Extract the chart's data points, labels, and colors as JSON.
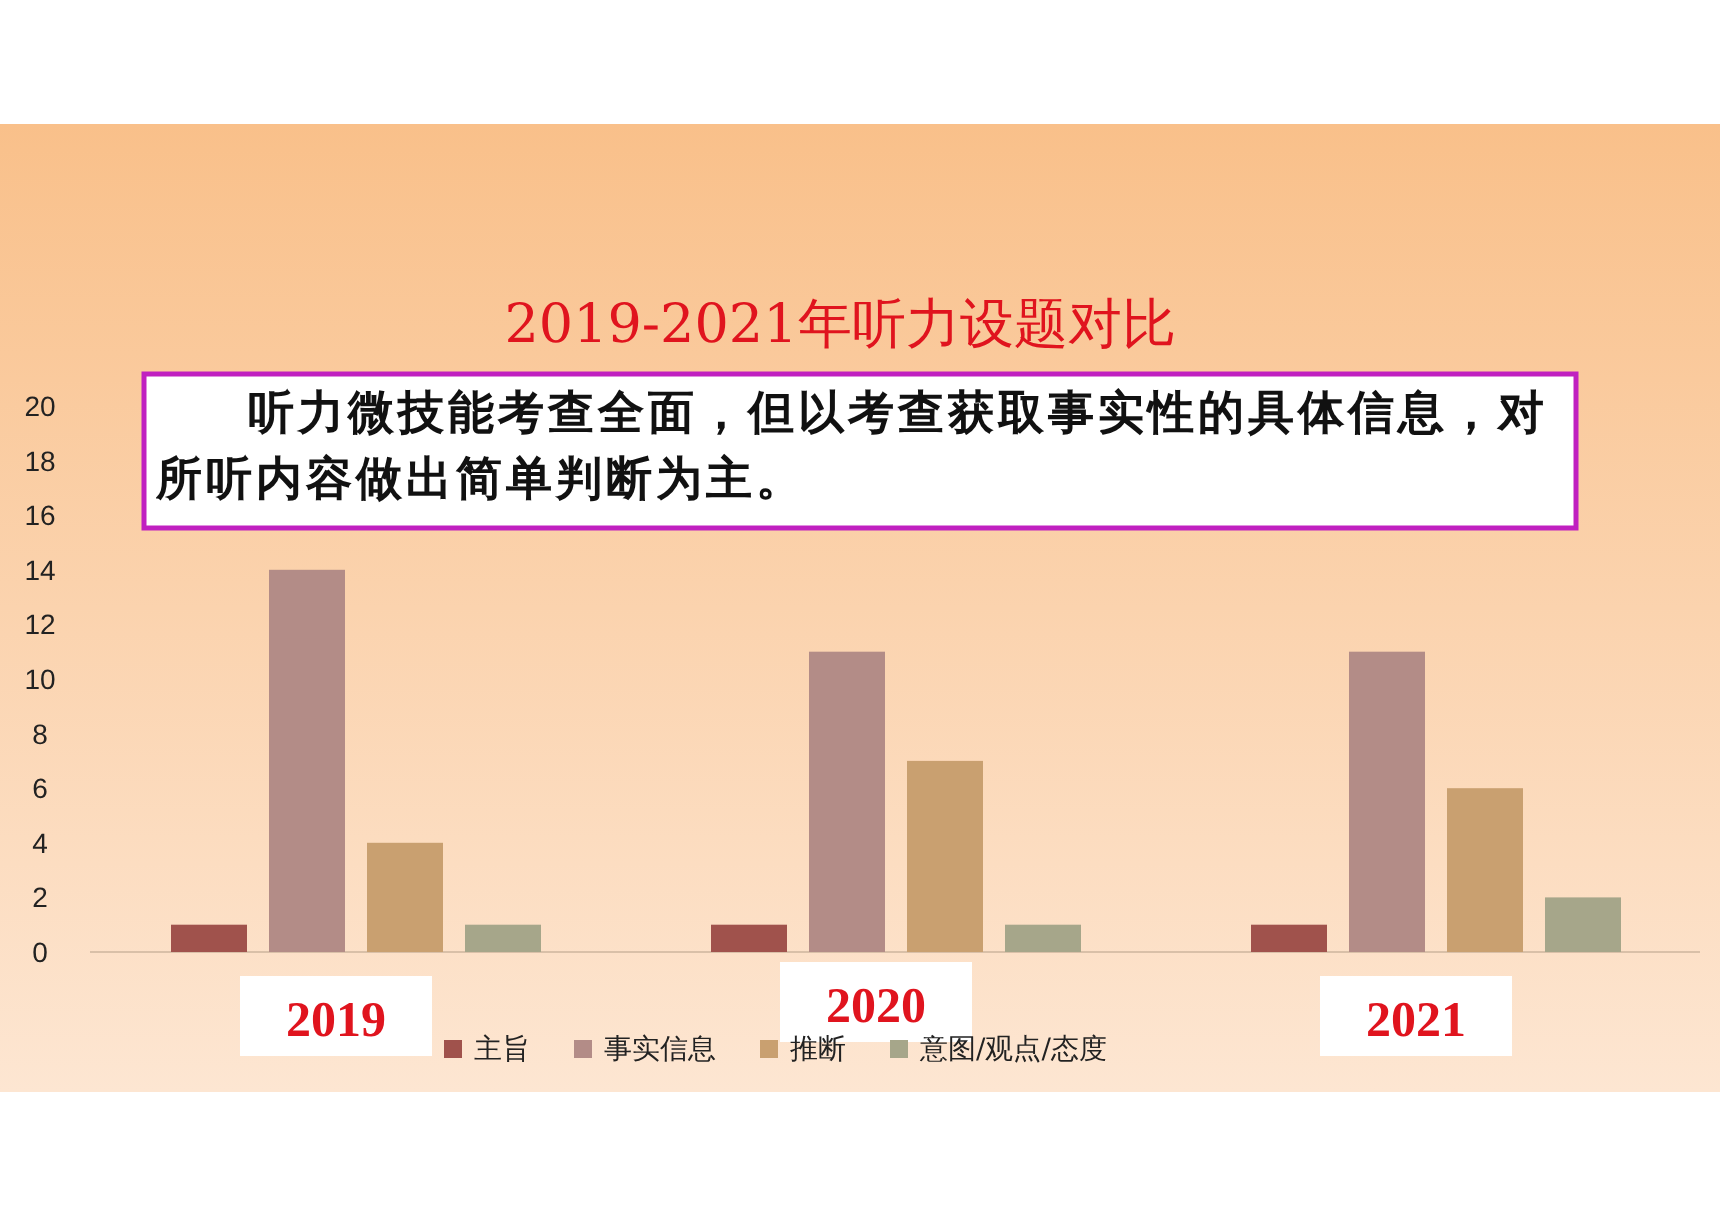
{
  "chart_data": {
    "type": "bar",
    "title": "2019-2021年听力设题对比",
    "annotations": [
      "听力微技能考查全面，但以考查获取事实性的具体信息，对所听内容做出简单判断为主。"
    ],
    "categories": [
      "2019",
      "2020",
      "2021"
    ],
    "series": [
      {
        "name": "主旨",
        "color": "#a0524c",
        "values": [
          1,
          1,
          1
        ]
      },
      {
        "name": "事实信息",
        "color": "#b38c87",
        "values": [
          14,
          11,
          11
        ]
      },
      {
        "name": "推断",
        "color": "#c9a070",
        "values": [
          4,
          7,
          6
        ]
      },
      {
        "name": "意图/观点/态度",
        "color": "#a6a68a",
        "values": [
          1,
          1,
          2
        ]
      }
    ],
    "ylim": [
      0,
      20
    ],
    "yticks": [
      0,
      2,
      4,
      6,
      8,
      10,
      12,
      14,
      16,
      18,
      20
    ],
    "legend": "bottom"
  }
}
